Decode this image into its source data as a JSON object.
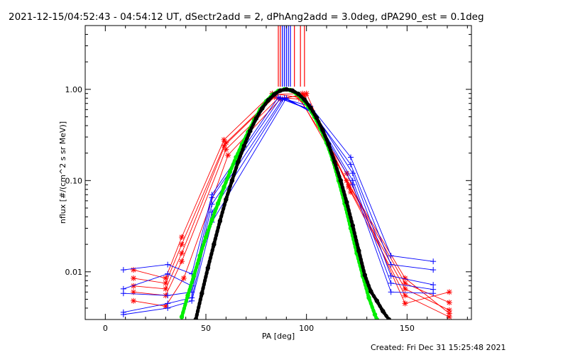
{
  "chart_data": {
    "type": "line",
    "title": "2021-12-15/04:52:43 - 04:54:12 UT, dSectr2add = 2, dPhAng2add = 3.0deg, dPA290_est =  0.1deg",
    "xlabel": "PA [deg]",
    "ylabel": "nflux [#/(cm^2 s sr MeV)]",
    "xlim": [
      -10,
      182
    ],
    "ylim": [
      0.003,
      5
    ],
    "yscale": "log",
    "grid": false,
    "x_ticks": [
      0,
      50,
      100,
      150
    ],
    "x_tick_labels": [
      "0",
      "50",
      "100",
      "150"
    ],
    "y_ticks": [
      0.01,
      0.1,
      1
    ],
    "y_tick_labels": [
      "0.01",
      "0.10",
      "1.00"
    ],
    "footer": "Created: Fri Dec 31 15:25:48 2021",
    "colors": {
      "red": "#ff0000",
      "blue": "#0000ff",
      "green": "#00ee00",
      "black": "#000000"
    },
    "vertical_markers": [
      {
        "color": "#ff0000",
        "x": [
          86,
          87,
          94,
          97,
          99
        ]
      },
      {
        "color": "#0000ff",
        "x": [
          88,
          89,
          90,
          91,
          92
        ]
      }
    ],
    "red_series": [
      {
        "x": [
          14,
          30,
          38,
          59,
          83,
          96,
          120,
          149,
          171
        ],
        "y": [
          0.0105,
          0.0085,
          0.024,
          0.28,
          0.9,
          0.82,
          0.12,
          0.0045,
          0.006
        ]
      },
      {
        "x": [
          14,
          30,
          38,
          59,
          84,
          97,
          120,
          149,
          171
        ],
        "y": [
          0.0085,
          0.0075,
          0.02,
          0.24,
          0.82,
          0.78,
          0.1,
          0.0085,
          0.0035
        ]
      },
      {
        "x": [
          14,
          30,
          38,
          60,
          85,
          98,
          121,
          149,
          171
        ],
        "y": [
          0.007,
          0.0065,
          0.016,
          0.26,
          0.88,
          0.9,
          0.09,
          0.0075,
          0.0046
        ]
      },
      {
        "x": [
          14,
          30,
          38,
          60,
          86,
          99,
          121,
          149,
          171
        ],
        "y": [
          0.006,
          0.0055,
          0.013,
          0.22,
          0.8,
          0.86,
          0.085,
          0.0065,
          0.0038
        ]
      },
      {
        "x": [
          14,
          30,
          39,
          61,
          87,
          100,
          122,
          149,
          171
        ],
        "y": [
          0.0048,
          0.0042,
          0.0085,
          0.19,
          0.78,
          0.9,
          0.075,
          0.0055,
          0.0032
        ]
      }
    ],
    "blue_series": [
      {
        "x": [
          9,
          31,
          43,
          53,
          86,
          102,
          122,
          142,
          163
        ],
        "y": [
          0.0105,
          0.012,
          0.0095,
          0.07,
          0.82,
          0.65,
          0.18,
          0.015,
          0.013
        ]
      },
      {
        "x": [
          9,
          31,
          43,
          53,
          87,
          102,
          122,
          142,
          163
        ],
        "y": [
          0.0065,
          0.0095,
          0.007,
          0.065,
          0.8,
          0.6,
          0.15,
          0.012,
          0.0105
        ]
      },
      {
        "x": [
          9,
          31,
          43,
          53,
          88,
          103,
          123,
          142,
          163
        ],
        "y": [
          0.0058,
          0.0055,
          0.006,
          0.055,
          0.78,
          0.58,
          0.12,
          0.009,
          0.0072
        ]
      },
      {
        "x": [
          9,
          31,
          43,
          53,
          89,
          103,
          123,
          142,
          163
        ],
        "y": [
          0.0036,
          0.0045,
          0.0052,
          0.045,
          0.8,
          0.56,
          0.1,
          0.0075,
          0.0064
        ]
      },
      {
        "x": [
          9,
          31,
          43,
          53,
          90,
          103,
          123,
          142,
          163
        ],
        "y": [
          0.0034,
          0.004,
          0.0048,
          0.035,
          0.8,
          0.55,
          0.09,
          0.006,
          0.0058
        ]
      }
    ],
    "green_fit": {
      "x": [
        38,
        41,
        44,
        47,
        50,
        53,
        56,
        59,
        62,
        65,
        68,
        71,
        74,
        77,
        80,
        83,
        86,
        89,
        92,
        95,
        98,
        101,
        104,
        107,
        110,
        113,
        116,
        119,
        122,
        125,
        128,
        131,
        134,
        135
      ],
      "y": [
        0.0032,
        0.0055,
        0.009,
        0.015,
        0.024,
        0.037,
        0.056,
        0.085,
        0.125,
        0.18,
        0.25,
        0.34,
        0.46,
        0.6,
        0.74,
        0.87,
        0.96,
        1.0,
        0.98,
        0.9,
        0.78,
        0.64,
        0.5,
        0.37,
        0.26,
        0.17,
        0.1,
        0.056,
        0.03,
        0.016,
        0.009,
        0.0052,
        0.0034,
        0.003
      ]
    },
    "black_fit": {
      "x": [
        45,
        48,
        51,
        54,
        57,
        60,
        63,
        66,
        69,
        72,
        75,
        78,
        81,
        84,
        87,
        90,
        93,
        96,
        99,
        102,
        105,
        108,
        111,
        114,
        117,
        120,
        123,
        126,
        129,
        132,
        135,
        138,
        141
      ],
      "y": [
        0.003,
        0.0058,
        0.011,
        0.02,
        0.036,
        0.062,
        0.1,
        0.16,
        0.24,
        0.35,
        0.48,
        0.62,
        0.76,
        0.88,
        0.97,
        1.0,
        0.97,
        0.89,
        0.77,
        0.63,
        0.49,
        0.36,
        0.25,
        0.16,
        0.1,
        0.058,
        0.032,
        0.017,
        0.0092,
        0.0061,
        0.0048,
        0.0037,
        0.003
      ]
    }
  }
}
